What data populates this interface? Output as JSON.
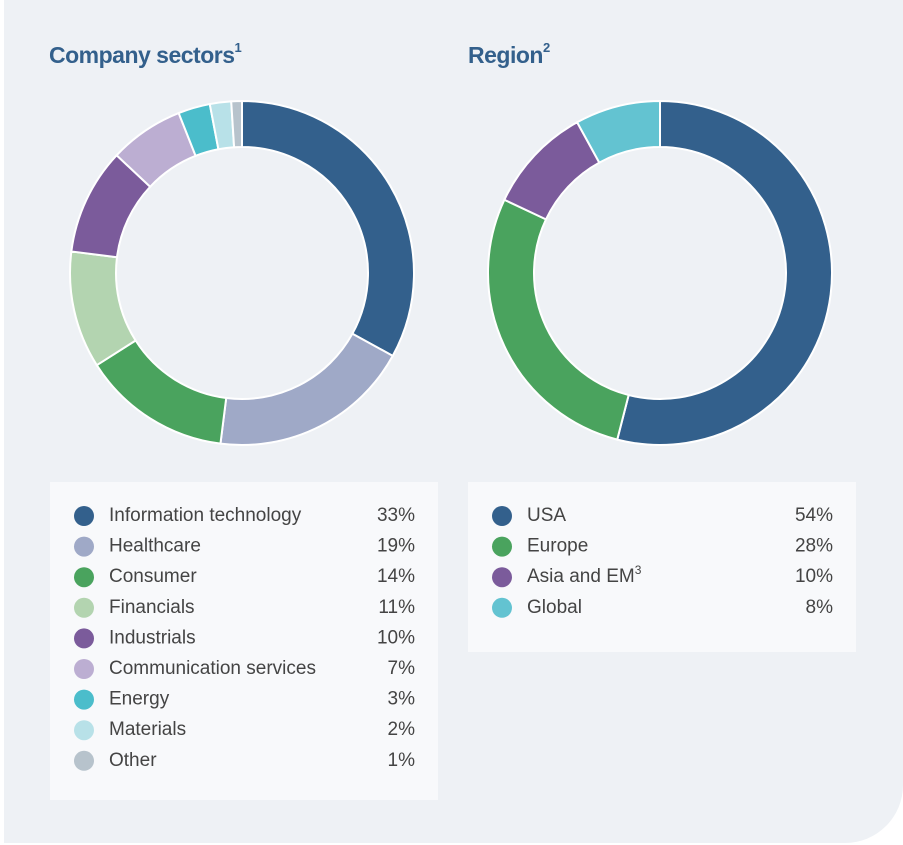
{
  "chart_data": [
    {
      "type": "donut",
      "title": "Company sectors",
      "title_note": "1",
      "categories": [
        "Information technology",
        "Healthcare",
        "Consumer",
        "Financials",
        "Industrials",
        "Communication services",
        "Energy",
        "Materials",
        "Other"
      ],
      "values": [
        33,
        19,
        14,
        11,
        10,
        7,
        3,
        2,
        1
      ],
      "value_labels": [
        "33%",
        "19%",
        "14%",
        "11%",
        "10%",
        "7%",
        "3%",
        "2%",
        "1%"
      ],
      "colors": [
        "#33608c",
        "#9fa9c7",
        "#4aa35e",
        "#b3d4b0",
        "#7b5b9b",
        "#bcaed2",
        "#4bbdcb",
        "#b8e1e8",
        "#b7c3cc"
      ]
    },
    {
      "type": "donut",
      "title": "Region",
      "title_note": "2",
      "categories": [
        "USA",
        "Europe",
        "Asia and EM",
        "Global"
      ],
      "category_notes": [
        null,
        null,
        "3",
        null
      ],
      "values": [
        54,
        28,
        10,
        8
      ],
      "value_labels": [
        "54%",
        "28%",
        "10%",
        "8%"
      ],
      "colors": [
        "#33608c",
        "#4aa35e",
        "#7b5b9b",
        "#63c3d1"
      ]
    }
  ]
}
